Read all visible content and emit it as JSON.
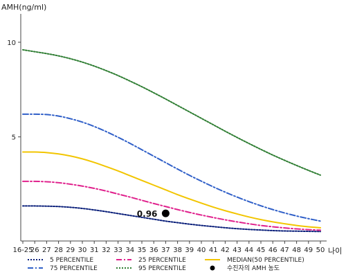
{
  "chart_data": {
    "type": "line",
    "ylabel": "AMH(ng/ml)",
    "xlabel": "나이",
    "ylim": [
      -0.5,
      11.5
    ],
    "y_ticks": [
      10,
      5
    ],
    "x": [
      "16-25",
      "26",
      "27",
      "28",
      "29",
      "30",
      "31",
      "32",
      "33",
      "34",
      "35",
      "36",
      "37",
      "38",
      "39",
      "40",
      "41",
      "42",
      "43",
      "44",
      "45",
      "46",
      "47",
      "48",
      "49",
      "50"
    ],
    "grid": false,
    "legend_position": "bottom",
    "series": [
      {
        "name": "5 PERCENTILE",
        "color": "#0a1f7a",
        "dash": "2,2",
        "values": [
          1.35,
          1.35,
          1.34,
          1.32,
          1.28,
          1.22,
          1.14,
          1.05,
          0.95,
          0.85,
          0.75,
          0.65,
          0.55,
          0.47,
          0.39,
          0.32,
          0.26,
          0.2,
          0.15,
          0.11,
          0.08,
          0.05,
          0.03,
          0.02,
          0.01,
          0.0
        ]
      },
      {
        "name": "25 PERCENTILE",
        "color": "#e0208c",
        "dash": "8,3,2,3",
        "values": [
          2.65,
          2.65,
          2.63,
          2.58,
          2.5,
          2.4,
          2.28,
          2.14,
          1.98,
          1.82,
          1.65,
          1.48,
          1.32,
          1.16,
          1.01,
          0.87,
          0.74,
          0.62,
          0.51,
          0.41,
          0.32,
          0.25,
          0.19,
          0.14,
          0.1,
          0.07
        ]
      },
      {
        "name": "MEDIAN(50 PERCENTILE)",
        "color": "#f2c500",
        "dash": "",
        "values": [
          4.2,
          4.2,
          4.17,
          4.1,
          3.99,
          3.84,
          3.65,
          3.43,
          3.2,
          2.95,
          2.7,
          2.45,
          2.2,
          1.95,
          1.72,
          1.5,
          1.29,
          1.1,
          0.93,
          0.77,
          0.63,
          0.51,
          0.41,
          0.32,
          0.25,
          0.2
        ]
      },
      {
        "name": "75 PERCENTILE",
        "color": "#2f5fc8",
        "dash": "8,3,2,3",
        "values": [
          6.2,
          6.2,
          6.18,
          6.1,
          5.96,
          5.78,
          5.55,
          5.28,
          4.98,
          4.66,
          4.32,
          3.98,
          3.64,
          3.3,
          2.97,
          2.66,
          2.36,
          2.08,
          1.82,
          1.58,
          1.36,
          1.16,
          0.98,
          0.82,
          0.68,
          0.55
        ]
      },
      {
        "name": "95 PERCENTILE",
        "color": "#2e7d32",
        "dash": "2,2",
        "values": [
          9.6,
          9.5,
          9.4,
          9.28,
          9.13,
          8.95,
          8.74,
          8.5,
          8.24,
          7.95,
          7.65,
          7.33,
          7.0,
          6.66,
          6.32,
          5.98,
          5.64,
          5.3,
          4.97,
          4.65,
          4.34,
          4.04,
          3.76,
          3.49,
          3.23,
          2.98
        ]
      }
    ],
    "marker": {
      "label": "수진자의 AMH 농도",
      "x": "37",
      "y": 0.96,
      "text": "0.96",
      "color": "#000000"
    },
    "legend_rows": [
      [
        "5 PERCENTILE",
        "25 PERCENTILE",
        "MEDIAN(50 PERCENTILE)"
      ],
      [
        "75 PERCENTILE",
        "95 PERCENTILE",
        "수진자의 AMH 농도"
      ]
    ]
  }
}
